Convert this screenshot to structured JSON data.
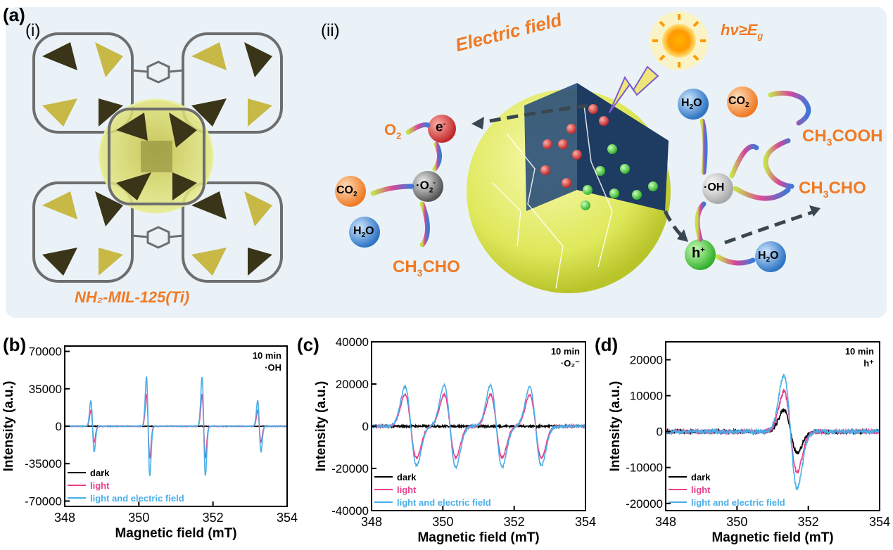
{
  "figure": {
    "panel_a": {
      "label": "(a)",
      "sub_i": "(i)",
      "sub_ii": "(ii)",
      "mof_name": "NH₂-MIL-125(Ti)",
      "electric_field": "Electric field",
      "photon_condition": "hν≥E",
      "photon_sub": "g",
      "species": {
        "o2": "O",
        "o2_sub": "2",
        "e": "e",
        "e_sup": "-",
        "o2_radical": "·O",
        "o2_radical_sub": "2",
        "o2_radical_sup": "-",
        "co2_left": "CO",
        "co2_left_sub": "2",
        "h2o_left": "H",
        "h2o_left_sub": "2",
        "h2o_left_tail": "O",
        "ch3cho_left": "CH",
        "ch3cho_left_sub": "3",
        "ch3cho_left_tail": "CHO",
        "h2o_right_top": "H",
        "h2o_right_top_sub": "2",
        "h2o_right_top_tail": "O",
        "co2_right": "CO",
        "co2_right_sub": "2",
        "ch3cooh": "CH",
        "ch3cooh_sub": "3",
        "ch3cooh_tail": "COOH",
        "oh_radical": "·OH",
        "ch3cho_right": "CH",
        "ch3cho_right_sub": "3",
        "ch3cho_right_tail": "CHO",
        "h_plus": "h",
        "h_plus_sup": "+",
        "h2o_right_bottom": "H",
        "h2o_right_bottom_sub": "2",
        "h2o_right_bottom_tail": "O"
      },
      "colors": {
        "orange": "#f07a23",
        "mof_yellow": "#d4c35a",
        "sphere": "#e6ec7a",
        "e_red": "#d93a3a",
        "h_green": "#5bd04a",
        "h2o_blue": "#4a8fd6",
        "radical_grey": "#888888"
      }
    }
  },
  "chart_data": [
    {
      "panel": "(b)",
      "type": "line",
      "xlabel": "Magnetic field (mT)",
      "ylabel": "Intensity (a.u.)",
      "xlim": [
        348,
        354
      ],
      "ylim": [
        -75000,
        75000
      ],
      "xticks": [
        348,
        350,
        352,
        354
      ],
      "yticks": [
        70000,
        35000,
        0,
        -35000,
        -70000
      ],
      "ytick_labels": [
        "70000",
        "35000",
        "0",
        "-35000",
        "-70000"
      ],
      "annotation": [
        "10 min",
        "·OH"
      ],
      "lines": [
        {
          "center": 348.75,
          "width": 0.06,
          "amp": [
            0,
            20000,
            32000
          ]
        },
        {
          "center": 350.25,
          "width": 0.06,
          "amp": [
            0,
            40000,
            62000
          ]
        },
        {
          "center": 351.75,
          "width": 0.06,
          "amp": [
            0,
            40000,
            62000
          ]
        },
        {
          "center": 353.25,
          "width": 0.06,
          "amp": [
            0,
            20000,
            32000
          ]
        }
      ],
      "series": [
        {
          "name": "dark",
          "color": "#000000"
        },
        {
          "name": "light",
          "color": "#e8418c"
        },
        {
          "name": "light and electric field",
          "color": "#4aaee8"
        }
      ]
    },
    {
      "panel": "(c)",
      "type": "line",
      "xlabel": "Magnetic field (mT)",
      "ylabel": "Intensity (a.u.)",
      "xlim": [
        348,
        354
      ],
      "ylim": [
        -40000,
        40000
      ],
      "xticks": [
        348,
        350,
        352,
        354
      ],
      "yticks": [
        40000,
        20000,
        0,
        -20000,
        -40000
      ],
      "ytick_labels": [
        "40000",
        "20000",
        "0",
        "-20000",
        "-40000"
      ],
      "annotation": [
        "10 min",
        "·O₂⁻"
      ],
      "lines": [
        {
          "center": 349.1,
          "width": 0.22,
          "amp": [
            0,
            20000,
            25000
          ]
        },
        {
          "center": 350.2,
          "width": 0.22,
          "amp": [
            0,
            20000,
            26000
          ]
        },
        {
          "center": 351.5,
          "width": 0.22,
          "amp": [
            0,
            20000,
            26000
          ]
        },
        {
          "center": 352.6,
          "width": 0.22,
          "amp": [
            0,
            20000,
            25000
          ]
        }
      ],
      "series": [
        {
          "name": "dark",
          "color": "#000000"
        },
        {
          "name": "light",
          "color": "#e8418c"
        },
        {
          "name": "light and electric field",
          "color": "#4aaee8"
        }
      ]
    },
    {
      "panel": "(d)",
      "type": "line",
      "xlabel": "Magnetic field (mT)",
      "ylabel": "Intensity (a.u.)",
      "xlim": [
        348,
        354
      ],
      "ylim": [
        -22000,
        25000
      ],
      "xticks": [
        348,
        350,
        352,
        354
      ],
      "yticks": [
        20000,
        10000,
        0,
        -10000,
        -20000
      ],
      "ytick_labels": [
        "20000",
        "10000",
        "0",
        "-10000",
        "-20000"
      ],
      "annotation": [
        "10 min",
        "h⁺"
      ],
      "lines": [
        {
          "center": 351.5,
          "width": 0.25,
          "amp": [
            8000,
            15000,
            21000
          ]
        }
      ],
      "series": [
        {
          "name": "dark",
          "color": "#000000"
        },
        {
          "name": "light",
          "color": "#e8418c"
        },
        {
          "name": "light and electric field",
          "color": "#4aaee8"
        }
      ]
    }
  ]
}
